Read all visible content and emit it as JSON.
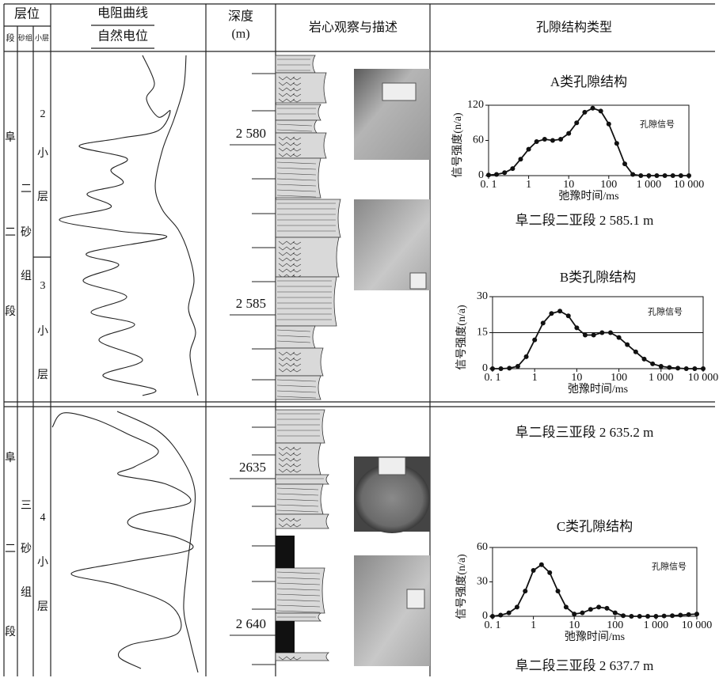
{
  "table": {
    "header": {
      "stratum": "层位",
      "duan": "段",
      "shazu": "砂组",
      "xiaoceng": "小层",
      "resistivity": "电阻曲线",
      "sp": "自然电位",
      "depth": "深度",
      "depth_unit": "(m)",
      "core": "岩心观察与描述",
      "pore": "孔隙结构类型"
    },
    "sections": [
      {
        "duan": [
          "阜",
          "二",
          "段"
        ],
        "shazu": [
          "二",
          "砂",
          "组"
        ],
        "xiaoceng": [
          [
            "2",
            "小",
            "层"
          ],
          [
            "3",
            "小",
            "层"
          ]
        ],
        "depths": [
          "2 580",
          "2 585"
        ]
      },
      {
        "duan": [
          "阜",
          "二",
          "段"
        ],
        "shazu": [
          "三",
          "砂",
          "组"
        ],
        "xiaoceng": [
          [
            "4",
            "小",
            "层"
          ]
        ],
        "depths": [
          "2635",
          "2 640"
        ]
      }
    ]
  },
  "chart_data": [
    {
      "type": "line",
      "title": "A类孔隙结构",
      "caption": "阜二段二亚段 2 585.1 m",
      "x_label": "弛豫时间/ms",
      "y_label": "信号强度(n/a)",
      "xscale": "log",
      "grid": false,
      "x": [
        0.1,
        0.158,
        0.251,
        0.398,
        0.631,
        1,
        1.58,
        2.51,
        3.98,
        6.31,
        10,
        15.8,
        25.1,
        39.8,
        63.1,
        100,
        158,
        251,
        398,
        631,
        1000,
        1580,
        2510,
        3980,
        6310,
        10000
      ],
      "series": [
        {
          "name": "孔隙信号",
          "color": "#111111",
          "values": [
            1,
            2,
            5,
            12,
            28,
            45,
            58,
            62,
            60,
            62,
            72,
            90,
            108,
            115,
            110,
            88,
            55,
            20,
            2,
            0,
            0,
            0,
            0,
            0,
            0,
            0
          ]
        }
      ],
      "xlim": [
        0.1,
        10000
      ],
      "xticks": [
        {
          "value": 0.1,
          "label": "0. 1"
        },
        1,
        10,
        100,
        {
          "value": 1000,
          "label": "1 000"
        },
        {
          "value": 10000,
          "label": "10 000"
        }
      ],
      "ylim": [
        0,
        120
      ],
      "yticks": [
        0,
        60,
        120
      ]
    },
    {
      "type": "line",
      "title": "B类孔隙结构",
      "caption": "阜二段三亚段 2 635.2 m",
      "x_label": "弛豫时间/ms",
      "y_label": "信号强度(n/a)",
      "xscale": "log",
      "grid": true,
      "x": [
        0.1,
        0.158,
        0.251,
        0.398,
        0.631,
        1,
        1.58,
        2.51,
        3.98,
        6.31,
        10,
        15.8,
        25.1,
        39.8,
        63.1,
        100,
        158,
        251,
        398,
        631,
        1000,
        1580,
        2510,
        3980,
        6310,
        10000
      ],
      "series": [
        {
          "name": "孔隙信号",
          "color": "#111111",
          "values": [
            0,
            0,
            0.2,
            1,
            5,
            12,
            19,
            23,
            24,
            22,
            17,
            14,
            14,
            15,
            15,
            13,
            10,
            7,
            4,
            2,
            1,
            0.5,
            0.2,
            0,
            0,
            0
          ]
        }
      ],
      "xlim": [
        0.1,
        10000
      ],
      "xticks": [
        {
          "value": 0.1,
          "label": "0. 1"
        },
        1,
        10,
        100,
        {
          "value": 1000,
          "label": "1 000"
        },
        {
          "value": 10000,
          "label": "10 000"
        }
      ],
      "ylim": [
        0,
        30
      ],
      "yticks": [
        0,
        15,
        30
      ]
    },
    {
      "type": "line",
      "title": "C类孔隙结构",
      "caption": "阜二段三亚段 2 637.7 m",
      "x_label": "弛豫时间/ms",
      "y_label": "信号强度(n/a)",
      "xscale": "log",
      "grid": false,
      "x": [
        0.1,
        0.158,
        0.251,
        0.398,
        0.631,
        1,
        1.58,
        2.51,
        3.98,
        6.31,
        10,
        15.8,
        25.1,
        39.8,
        63.1,
        100,
        158,
        251,
        398,
        631,
        1000,
        1580,
        2510,
        3980,
        6310,
        10000
      ],
      "series": [
        {
          "name": "孔隙信号",
          "color": "#111111",
          "values": [
            0,
            1,
            3,
            8,
            22,
            40,
            45,
            38,
            22,
            8,
            2,
            3,
            6,
            8,
            7,
            3,
            0.5,
            0,
            0,
            0,
            0,
            0.3,
            0.5,
            1,
            1.5,
            2
          ]
        }
      ],
      "xlim": [
        0.1,
        10000
      ],
      "xticks": [
        {
          "value": 0.1,
          "label": "0. 1"
        },
        1,
        10,
        100,
        {
          "value": 1000,
          "label": "1 000"
        },
        {
          "value": 10000,
          "label": "10 000"
        }
      ],
      "ylim": [
        0,
        60
      ],
      "yticks": [
        0,
        30,
        60
      ]
    }
  ]
}
